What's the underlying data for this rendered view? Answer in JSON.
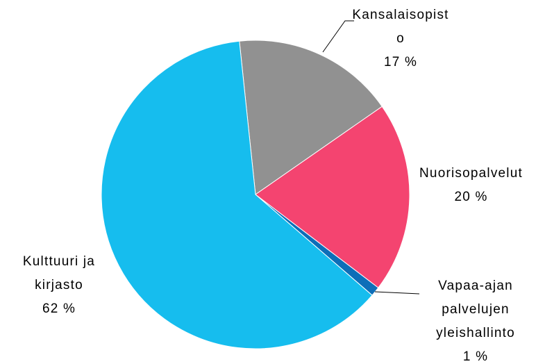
{
  "chart_data": {
    "type": "pie",
    "categories": [
      "Kansalaisopisto",
      "Nuorisopalvelut",
      "Vapaa-ajan palvelujen yleishallinto",
      "Kulttuuri ja kirjasto"
    ],
    "values": [
      17,
      20,
      1,
      62
    ],
    "value_labels": [
      "17 %",
      "20 %",
      "1 %",
      "62 %"
    ],
    "colors": [
      "#919191",
      "#f44470",
      "#0d6eb8",
      "#16bdee"
    ]
  }
}
